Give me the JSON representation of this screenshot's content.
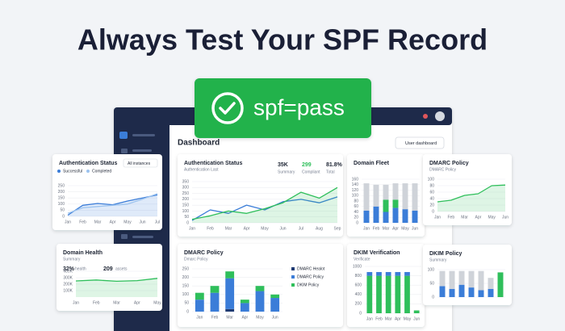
{
  "header": {
    "title": "Always Test Your SPF Record"
  },
  "badge": {
    "text": "spf=pass"
  },
  "dashboard": {
    "title": "Dashboard",
    "button": "User dashboard"
  },
  "chart_data": [
    {
      "type": "line",
      "title": "Authentication Status",
      "dropdown": "All instances",
      "categories": [
        "Jan",
        "Feb",
        "Mar",
        "Apr",
        "May",
        "Jun",
        "Jul"
      ],
      "series": [
        {
          "name": "Successful",
          "color": "#3b7dd8",
          "area": true,
          "values": [
            10,
            90,
            105,
            95,
            125,
            150,
            175
          ]
        },
        {
          "name": "Completed",
          "color": "#9cc3ef",
          "values": [
            25,
            70,
            80,
            90,
            100,
            140,
            185
          ]
        }
      ],
      "ylim": [
        0,
        250
      ],
      "yticks": [
        0,
        50,
        100,
        150,
        200,
        250
      ],
      "grid": true
    },
    {
      "type": "line",
      "title": "Authentication Status",
      "subtitle": "Authentication Last",
      "stats": [
        {
          "value": "35K",
          "label": "Summary"
        },
        {
          "value": "299",
          "label": "Compliant"
        },
        {
          "value": "81.8%",
          "label": "Total"
        }
      ],
      "categories": [
        "Jan",
        "Feb",
        "Mar",
        "Apr",
        "May",
        "Jun",
        "Jul",
        "Aug",
        "Sep"
      ],
      "series": [
        {
          "color": "#3b7dd8",
          "values": [
            20,
            110,
            80,
            150,
            110,
            180,
            200,
            170,
            220
          ]
        },
        {
          "color": "#2fbf5b",
          "area": true,
          "values": [
            30,
            60,
            100,
            80,
            120,
            170,
            260,
            210,
            300
          ]
        }
      ],
      "ylim": [
        0,
        350
      ],
      "yticks": [
        0,
        50,
        100,
        150,
        200,
        250,
        300,
        350
      ],
      "grid": true
    },
    {
      "type": "bar",
      "title": "Domain Fleet",
      "categories": [
        "Jan",
        "Feb",
        "Mar",
        "Apr",
        "May",
        "Jun"
      ],
      "series": [
        {
          "color": "#3b7dd8",
          "values": [
            45,
            60,
            40,
            55,
            50,
            45
          ]
        },
        {
          "color": "#2fbf5b",
          "values": [
            0,
            0,
            45,
            30,
            0,
            0
          ]
        },
        {
          "color": "#cfd3d9",
          "values": [
            100,
            80,
            55,
            60,
            95,
            100
          ]
        }
      ],
      "ylim": [
        0,
        160
      ],
      "yticks": [
        0,
        20,
        40,
        60,
        80,
        100,
        120,
        140,
        160
      ],
      "grid": true
    },
    {
      "type": "line",
      "title": "DMARC Policy",
      "subtitle": "DMARC Policy",
      "categories": [
        "Jan",
        "Feb",
        "Mar",
        "Apr",
        "May",
        "Jun"
      ],
      "color": "#2fbf5b",
      "area": true,
      "values": [
        30,
        35,
        50,
        55,
        80,
        82
      ],
      "ylim": [
        0,
        100
      ],
      "yticks": [
        0,
        20,
        40,
        60,
        80,
        100
      ],
      "grid": true
    },
    {
      "type": "line",
      "title": "Domain Health",
      "subtitle": "Summary",
      "stats": [
        {
          "value": "32%",
          "label": "health"
        },
        {
          "value": "209",
          "label": "assets"
        }
      ],
      "categories": [
        "Jan",
        "Feb",
        "Mar",
        "Apr",
        "May"
      ],
      "color": "#2fbf5b",
      "area": true,
      "values": [
        250000,
        265000,
        245000,
        255000,
        290000
      ],
      "ylim": [
        0,
        400000
      ],
      "yticks": [
        {
          "value": 100000,
          "label": "100K"
        },
        {
          "value": 200000,
          "label": "200K"
        },
        {
          "value": 300000,
          "label": "300K"
        },
        {
          "value": 400000,
          "label": "400K"
        }
      ],
      "grid": true
    },
    {
      "type": "bar",
      "title": "DMARC Policy",
      "subtitle": "Dmarc Policy",
      "legend": "right",
      "categories": [
        "Jan",
        "Feb",
        "Mar",
        "Apr",
        "May",
        "Jun"
      ],
      "series": [
        {
          "name": "DMARC Healot",
          "color": "#1f3b73",
          "values": [
            0,
            0,
            15,
            0,
            0,
            0
          ]
        },
        {
          "name": "DMARC Policy",
          "color": "#3b7dd8",
          "values": [
            70,
            110,
            180,
            50,
            120,
            80
          ]
        },
        {
          "name": "DKIM Policy",
          "color": "#2fbf5b",
          "values": [
            40,
            40,
            40,
            20,
            30,
            20
          ]
        }
      ],
      "ylim": [
        0,
        250
      ],
      "yticks": [
        0,
        50,
        100,
        150,
        200,
        250
      ],
      "grid": true
    },
    {
      "type": "bar",
      "title": "DKIM Verification",
      "subtitle": "Verificate",
      "categories": [
        "Jan",
        "Feb",
        "Mar",
        "Apr",
        "May",
        "Jun"
      ],
      "series": [
        {
          "color": "#2fbf5b",
          "values": [
            800,
            800,
            800,
            800,
            800,
            60
          ]
        },
        {
          "color": "#3b7dd8",
          "values": [
            80,
            80,
            80,
            80,
            80,
            0
          ]
        }
      ],
      "ylim": [
        0,
        1000
      ],
      "yticks": [
        0,
        200,
        400,
        600,
        800,
        1000
      ],
      "grid": true
    },
    {
      "type": "bar",
      "title": "DKIM Policy",
      "subtitle": "Summary",
      "series": [
        {
          "color": "#3b7dd8",
          "values": [
            40,
            30,
            45,
            35,
            25,
            30,
            0
          ]
        },
        {
          "color": "#2fbf5b",
          "values": [
            0,
            0,
            0,
            0,
            0,
            0,
            90
          ]
        },
        {
          "color": "#cfd3d9",
          "values": [
            55,
            65,
            50,
            60,
            70,
            40,
            0
          ]
        }
      ],
      "ylim": [
        0,
        100
      ],
      "yticks": [
        0,
        50,
        100
      ],
      "grid": true
    }
  ]
}
